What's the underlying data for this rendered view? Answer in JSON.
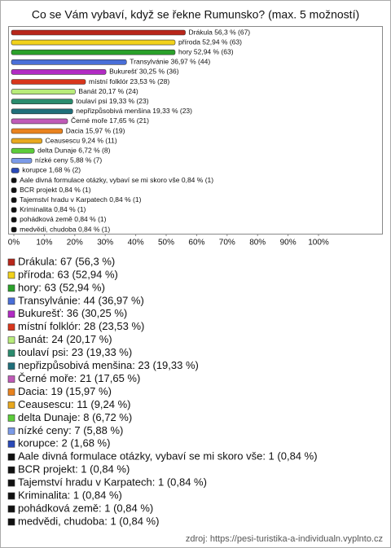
{
  "chart_data": {
    "type": "hbar",
    "title": "Co se Vám vybaví, když se řekne Rumunsko? (max. 5 možností)",
    "categories": [
      "Drákula",
      "příroda",
      "hory",
      "Transylvánie",
      "Bukurešť",
      "místní folklór",
      "Banát",
      "toulaví psi",
      "nepřizpůsobivá menšina",
      "Černé moře",
      "Dacia",
      "Ceausescu",
      "delta Dunaje",
      "nízké ceny",
      "korupce",
      "Aale divná formulace otázky, vybaví se mi skoro vše",
      "BCR projekt",
      "Tajemství hradu v Karpatech",
      "Kriminalita",
      "pohádková země",
      "medvědi, chudoba"
    ],
    "values": [
      56.3,
      52.94,
      52.94,
      36.97,
      30.25,
      23.53,
      20.17,
      19.33,
      19.33,
      17.65,
      15.97,
      9.24,
      6.72,
      5.88,
      1.68,
      0.84,
      0.84,
      0.84,
      0.84,
      0.84,
      0.84
    ],
    "value_labels": [
      "Drákula 56,3 % (67)",
      "příroda 52,94 % (63)",
      "hory 52,94 % (63)",
      "Transylvánie 36,97 % (44)",
      "Bukurešť 30,25 % (36)",
      "místní folklór 23,53 % (28)",
      "Banát 20,17 % (24)",
      "toulaví psi 19,33 % (23)",
      "nepřizpůsobivá menšina 19,33 % (23)",
      "Černé moře 17,65 % (21)",
      "Dacia 15,97 % (19)",
      "Ceausescu 9,24 % (11)",
      "delta Dunaje 6,72 % (8)",
      "nízké ceny 5,88 % (7)",
      "korupce 1,68 % (2)",
      "Aale divná formulace otázky, vybaví se mi skoro vše 0,84 % (1)",
      "BCR projekt 0,84 % (1)",
      "Tajemství hradu v Karpatech 0,84 % (1)",
      "Kriminalita 0,84 % (1)",
      "pohádková země 0,84 % (1)",
      "medvědi, chudoba 0,84 % (1)"
    ],
    "legend": [
      "Drákula: 67 (56,3 %)",
      "příroda: 63 (52,94 %)",
      "hory: 63 (52,94 %)",
      "Transylvánie: 44 (36,97 %)",
      "Bukurešť: 36 (30,25 %)",
      "místní folklór: 28 (23,53 %)",
      "Banát: 24 (20,17 %)",
      "toulaví psi: 23 (19,33 %)",
      "nepřizpůsobivá menšina: 23 (19,33 %)",
      "Černé moře: 21 (17,65 %)",
      "Dacia: 19 (15,97 %)",
      "Ceausescu: 11 (9,24 %)",
      "delta Dunaje: 8 (6,72 %)",
      "nízké ceny: 7 (5,88 %)",
      "korupce: 2 (1,68 %)",
      "Aale divná formulace otázky, vybaví se mi skoro vše: 1 (0,84 %)",
      "BCR projekt: 1 (0,84 %)",
      "Tajemství hradu v Karpatech: 1 (0,84 %)",
      "Kriminalita: 1 (0,84 %)",
      "pohádková země: 1 (0,84 %)",
      "medvědi, chudoba: 1 (0,84 %)"
    ],
    "colors": [
      "#b8261a",
      "#f2d21b",
      "#2aa12a",
      "#4a6fd8",
      "#b22bc4",
      "#d8361c",
      "#b8ec7a",
      "#2a8c6e",
      "#1f6f7a",
      "#c05ab8",
      "#e8821e",
      "#e8a81e",
      "#5ccc3a",
      "#7a9ae8",
      "#2a4ab8",
      "#111111",
      "#111111",
      "#111111",
      "#111111",
      "#111111",
      "#111111"
    ],
    "xlim": [
      0,
      121
    ],
    "xticks": [
      {
        "value": 0,
        "label": "0%"
      },
      {
        "value": 10,
        "label": "10%"
      },
      {
        "value": 20,
        "label": "20%"
      },
      {
        "value": 30,
        "label": "30%"
      },
      {
        "value": 40,
        "label": "40%"
      },
      {
        "value": 50,
        "label": "50%"
      },
      {
        "value": 60,
        "label": "60%"
      },
      {
        "value": 70,
        "label": "70%"
      },
      {
        "value": 80,
        "label": "80%"
      },
      {
        "value": 90,
        "label": "90%"
      },
      {
        "value": 100,
        "label": "100%"
      }
    ],
    "source": "zdroj: https://pesi-turistika-a-individualn.vyplnto.cz"
  }
}
